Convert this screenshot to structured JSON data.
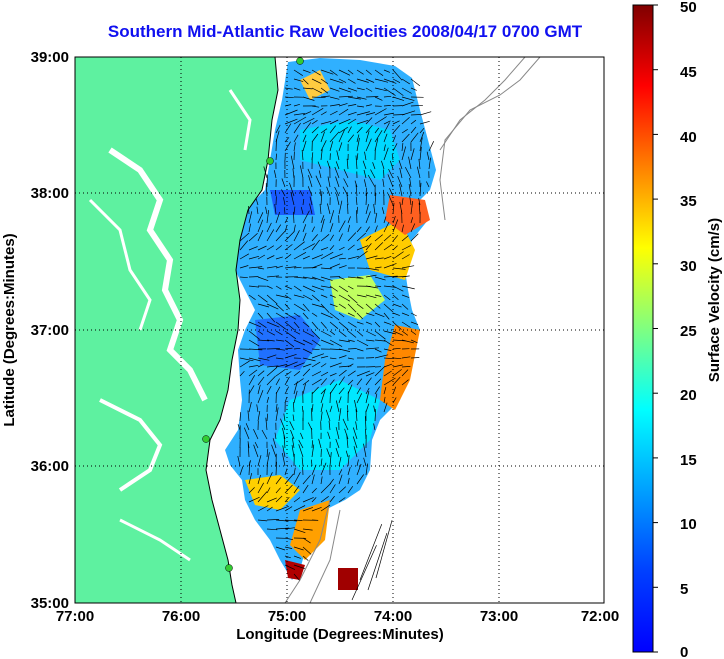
{
  "title": "Southern Mid-Atlantic Raw Velocities 2008/04/17 0700 GMT",
  "chart_data": {
    "type": "map",
    "x_axis": {
      "label": "Longitude (Degrees:Minutes)",
      "ticks": [
        "77:00",
        "76:00",
        "75:00",
        "74:00",
        "73:00",
        "72:00"
      ],
      "range": [
        -77,
        -72
      ]
    },
    "y_axis": {
      "label": "Latitude (Degrees:Minutes)",
      "ticks": [
        "39:00",
        "38:00",
        "37:00",
        "36:00",
        "35:00"
      ],
      "range": [
        35,
        39
      ]
    },
    "colorbar": {
      "label": "Surface Velocity (cm/s)",
      "ticks": [
        "50",
        "45",
        "40",
        "35",
        "30",
        "25",
        "20",
        "15",
        "10",
        "5",
        "0"
      ],
      "range": [
        0,
        50
      ],
      "colormap": "jet"
    },
    "grid": "dotted",
    "colors": {
      "land": "#5ef1a0",
      "title": "#1010f0",
      "station": "#33cc33"
    }
  }
}
